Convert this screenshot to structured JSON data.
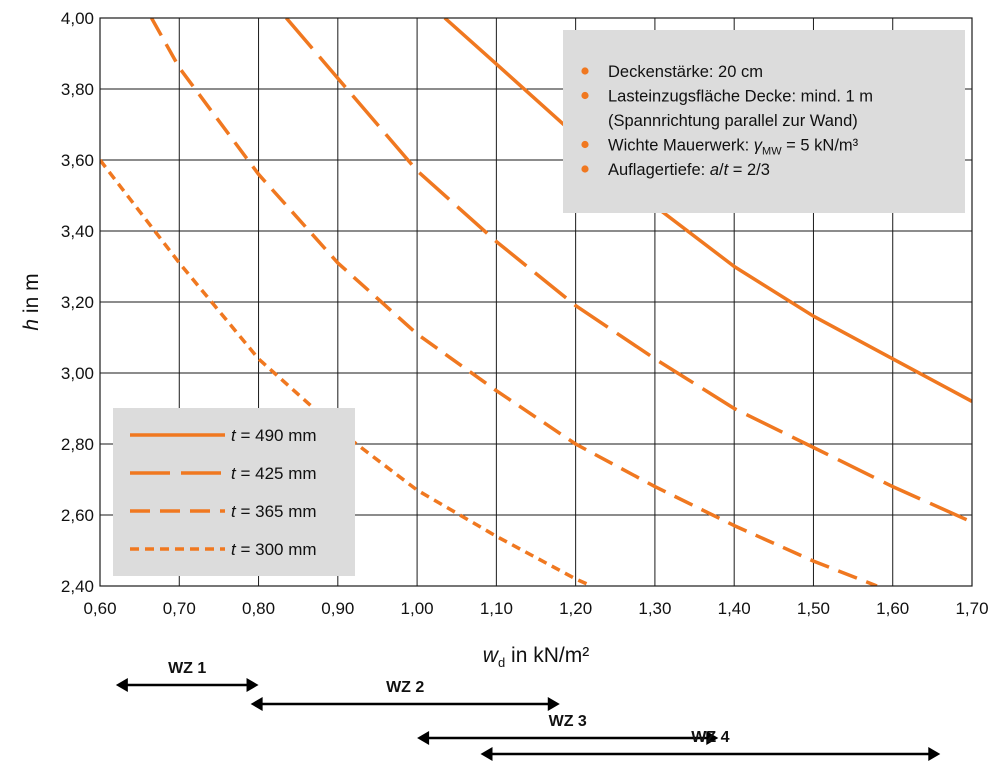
{
  "chart_data": {
    "type": "line",
    "xlabel": {
      "var": "w",
      "sub": "d",
      "text": " in kN/m²"
    },
    "ylabel": {
      "var": "h",
      "text": " in m"
    },
    "xlim": [
      0.6,
      1.7
    ],
    "ylim": [
      2.4,
      4.0
    ],
    "x_ticks": [
      "0,60",
      "0,70",
      "0,80",
      "0,90",
      "1,00",
      "1,10",
      "1,20",
      "1,30",
      "1,40",
      "1,50",
      "1,60",
      "1,70"
    ],
    "y_ticks": [
      "2,40",
      "2,60",
      "2,80",
      "3,00",
      "3,20",
      "3,40",
      "3,60",
      "3,80",
      "4,00"
    ],
    "grid": true,
    "color": "#F07820",
    "series": [
      {
        "name": "t = 490 mm",
        "var": "t",
        "value_text": " = 490 mm",
        "dash": "solid",
        "x": [
          1.035,
          1.1,
          1.2,
          1.3,
          1.4,
          1.5,
          1.6,
          1.7
        ],
        "y": [
          4.0,
          3.87,
          3.67,
          3.47,
          3.3,
          3.16,
          3.04,
          2.92
        ]
      },
      {
        "name": "t = 425 mm",
        "var": "t",
        "value_text": " = 425 mm",
        "dash": "long",
        "x": [
          0.835,
          0.9,
          1.0,
          1.1,
          1.2,
          1.3,
          1.4,
          1.5,
          1.6,
          1.7
        ],
        "y": [
          4.0,
          3.83,
          3.57,
          3.37,
          3.19,
          3.04,
          2.9,
          2.79,
          2.68,
          2.58
        ]
      },
      {
        "name": "t = 365 mm",
        "var": "t",
        "value_text": " = 365 mm",
        "dash": "medium",
        "x": [
          0.665,
          0.7,
          0.8,
          0.9,
          1.0,
          1.1,
          1.2,
          1.3,
          1.4,
          1.5,
          1.58
        ],
        "y": [
          4.0,
          3.86,
          3.56,
          3.31,
          3.11,
          2.95,
          2.8,
          2.68,
          2.57,
          2.47,
          2.4
        ]
      },
      {
        "name": "t = 300 mm",
        "var": "t",
        "value_text": " = 300 mm",
        "dash": "short",
        "x": [
          0.6,
          0.7,
          0.8,
          0.9,
          1.0,
          1.1,
          1.2,
          1.22
        ],
        "y": [
          3.6,
          3.31,
          3.04,
          2.84,
          2.67,
          2.54,
          2.42,
          2.4
        ]
      }
    ],
    "info_box": [
      [
        {
          "t": "Deckenstärke: 20 cm"
        }
      ],
      [
        {
          "t": "Lasteinzugsfläche Decke: mind. 1 m"
        }
      ],
      [
        {
          "t": "(Spannrichtung parallel zur Wand)",
          "cont": true
        }
      ],
      [
        {
          "t": "Wichte Mauerwerk: "
        },
        {
          "t": "γ",
          "it": true
        },
        {
          "t": "MW",
          "sub": true
        },
        {
          "t": " = 5 kN/m³"
        }
      ],
      [
        {
          "t": "Auflagertiefe: "
        },
        {
          "t": "a",
          "it": true
        },
        {
          "t": "/"
        },
        {
          "t": "t",
          "it": true
        },
        {
          "t": " = 2/3"
        }
      ]
    ],
    "zones": [
      {
        "label": "WZ 1",
        "x0": 0.62,
        "x1": 0.8
      },
      {
        "label": "WZ 2",
        "x0": 0.79,
        "x1": 1.18
      },
      {
        "label": "WZ 3",
        "x0": 1.0,
        "x1": 1.38
      },
      {
        "label": "WZ 4",
        "x0": 1.08,
        "x1": 1.66
      }
    ]
  }
}
